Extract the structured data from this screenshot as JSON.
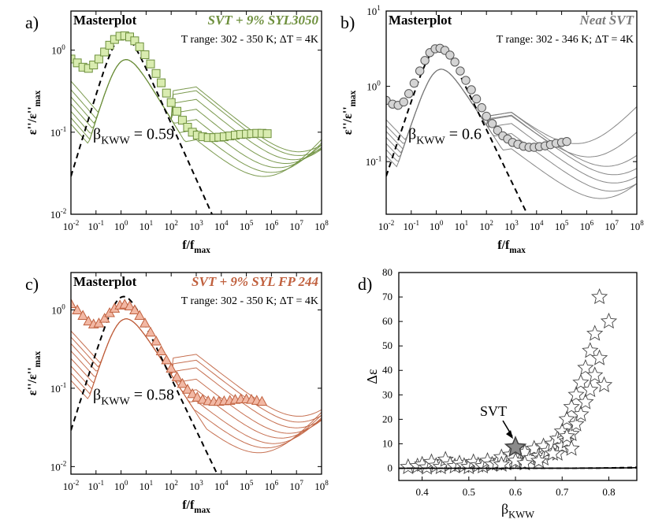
{
  "colors": {
    "panel_a": "#6d8f3c",
    "panel_a_fill": "#d9ecb0",
    "panel_b": "#7a7a7a",
    "panel_b_fill": "#d4d4d4",
    "panel_c": "#c0603e",
    "panel_c_fill": "#f2b8a4",
    "text": "#000000"
  },
  "chart_data": [
    {
      "id": "a",
      "panel_label": "a)",
      "type": "line",
      "title": "Masterplot",
      "sample": "SVT + 9% SYL3050",
      "t_range": "T range: 302 - 350 K; ΔT = 4K",
      "beta_label": "β",
      "beta_sub": "KWW",
      "beta_value": "= 0.59",
      "xlabel": "f/f",
      "xlabel_sub": "max",
      "ylabel": "ε''/ε''",
      "ylabel_sub": "max",
      "xscale": "log",
      "yscale": "log",
      "xlim": [
        0.01,
        100000000
      ],
      "ylim": [
        0.01,
        3
      ],
      "xticks": [
        "10-2",
        "10-1",
        "100",
        "101",
        "102",
        "103",
        "104",
        "105",
        "106",
        "107",
        "108"
      ],
      "yticks": [
        {
          "v": 0.01,
          "l": "10-2"
        },
        {
          "v": 0.1,
          "l": "10-1"
        },
        {
          "v": 1,
          "l": "100"
        }
      ],
      "fit_beta": 0.59,
      "markers": {
        "shape": "square",
        "x": [
          0.01,
          0.018,
          0.03,
          0.05,
          0.08,
          0.13,
          0.22,
          0.35,
          0.55,
          0.9,
          1.4,
          2.2,
          3.5,
          5.5,
          9,
          15,
          25,
          40,
          65,
          100,
          170,
          280,
          450,
          700,
          1100,
          1800,
          3000,
          5000,
          8000,
          13000,
          22000,
          36000,
          60000,
          100000,
          160000,
          260000,
          420000,
          680000
        ],
        "y": [
          0.78,
          0.7,
          0.62,
          0.6,
          0.66,
          0.78,
          0.95,
          1.15,
          1.35,
          1.48,
          1.5,
          1.45,
          1.3,
          1.1,
          0.88,
          0.68,
          0.52,
          0.4,
          0.3,
          0.23,
          0.18,
          0.14,
          0.115,
          0.1,
          0.092,
          0.088,
          0.086,
          0.086,
          0.087,
          0.088,
          0.09,
          0.092,
          0.094,
          0.095,
          0.096,
          0.097,
          0.097,
          0.096
        ]
      },
      "curves": [
        {
          "low": 0.7,
          "high_x": 100000000,
          "high_y": 0.05
        },
        {
          "low": 0.55,
          "high_x": 100000000,
          "high_y": 0.045
        },
        {
          "low": 0.45,
          "high_x": 60000000,
          "high_y": 0.04
        },
        {
          "low": 0.37,
          "high_x": 30000000,
          "high_y": 0.036
        },
        {
          "low": 0.3,
          "high_x": 15000000,
          "high_y": 0.032
        },
        {
          "low": 0.25,
          "high_x": 8000000,
          "high_y": 0.028
        },
        {
          "low": 0.21,
          "high_x": 4000000,
          "high_y": 0.025
        }
      ]
    },
    {
      "id": "b",
      "panel_label": "b)",
      "type": "line",
      "title": "Masterplot",
      "sample": "Neat SVT",
      "t_range": "T range: 302 - 346 K; ΔT = 4K",
      "beta_label": "β",
      "beta_sub": "KWW",
      "beta_value": "= 0.6",
      "xlabel": "f/f",
      "xlabel_sub": "max",
      "ylabel": "ε''/ε''",
      "ylabel_sub": "max",
      "xscale": "log",
      "yscale": "log",
      "xlim": [
        0.01,
        100000000
      ],
      "ylim": [
        0.02,
        10
      ],
      "xticks": [
        "10-2",
        "10-1",
        "100",
        "101",
        "102",
        "103",
        "104",
        "105",
        "106",
        "107",
        "108"
      ],
      "yticks": [
        {
          "v": 0.1,
          "l": "10-1"
        },
        {
          "v": 1,
          "l": "100"
        },
        {
          "v": 10,
          "l": "101"
        }
      ],
      "fit_beta": 0.6,
      "fit_scale": 3.2,
      "markers": {
        "shape": "circle",
        "x": [
          0.01,
          0.018,
          0.03,
          0.05,
          0.08,
          0.13,
          0.22,
          0.35,
          0.55,
          0.9,
          1.4,
          2.2,
          3.5,
          5.5,
          9,
          15,
          25,
          40,
          65,
          100,
          170,
          280,
          450,
          700,
          1100,
          1800,
          3000,
          5000,
          8000,
          13000,
          22000,
          36000,
          60000,
          100000,
          160000
        ],
        "y": [
          0.65,
          0.58,
          0.56,
          0.62,
          0.8,
          1.1,
          1.6,
          2.2,
          2.8,
          3.15,
          3.2,
          3.0,
          2.6,
          2.1,
          1.6,
          1.2,
          0.9,
          0.68,
          0.52,
          0.4,
          0.32,
          0.26,
          0.22,
          0.2,
          0.18,
          0.17,
          0.16,
          0.155,
          0.155,
          0.158,
          0.162,
          0.168,
          0.175,
          0.18,
          0.185
        ]
      },
      "curves": [
        {
          "low": 0.6,
          "high_x": 3000000,
          "high_y": 0.15
        },
        {
          "low": 0.5,
          "high_x": 10000000,
          "high_y": 0.1
        },
        {
          "low": 0.42,
          "high_x": 50000000,
          "high_y": 0.075
        },
        {
          "low": 0.35,
          "high_x": 100000000,
          "high_y": 0.058
        },
        {
          "low": 0.29,
          "high_x": 100000000,
          "high_y": 0.045
        },
        {
          "low": 0.24,
          "high_x": 80000000,
          "high_y": 0.035
        },
        {
          "low": 0.2,
          "high_x": 30000000,
          "high_y": 0.028
        }
      ]
    },
    {
      "id": "c",
      "panel_label": "c)",
      "type": "line",
      "title": "Masterplot",
      "sample": "SVT + 9% SYL FP 244",
      "t_range": "T range: 302 - 350 K; ΔT = 4K",
      "beta_label": "β",
      "beta_sub": "KWW",
      "beta_value": "= 0.58",
      "xlabel": "f/f",
      "xlabel_sub": "max",
      "ylabel": "ε''/ε''",
      "ylabel_sub": "max",
      "xscale": "log",
      "yscale": "log",
      "xlim": [
        0.01,
        100000000
      ],
      "ylim": [
        0.008,
        3
      ],
      "xticks": [
        "10-2",
        "10-1",
        "100",
        "101",
        "102",
        "103",
        "104",
        "105",
        "106",
        "107",
        "108"
      ],
      "yticks": [
        {
          "v": 0.01,
          "l": "10-2"
        },
        {
          "v": 0.1,
          "l": "10-1"
        },
        {
          "v": 1,
          "l": "100"
        }
      ],
      "fit_beta": 0.58,
      "markers": {
        "shape": "triangle",
        "x": [
          0.01,
          0.018,
          0.03,
          0.05,
          0.08,
          0.13,
          0.22,
          0.35,
          0.55,
          0.9,
          1.4,
          2.2,
          3.5,
          5.5,
          9,
          15,
          25,
          40,
          65,
          100,
          170,
          280,
          450,
          700,
          1100,
          1800,
          3000,
          5000,
          8000,
          13000,
          22000,
          36000,
          60000,
          100000,
          160000,
          260000,
          420000
        ],
        "y": [
          1.2,
          1.0,
          0.85,
          0.72,
          0.66,
          0.68,
          0.78,
          0.92,
          1.05,
          1.15,
          1.18,
          1.12,
          1.0,
          0.85,
          0.68,
          0.52,
          0.4,
          0.3,
          0.23,
          0.18,
          0.14,
          0.115,
          0.097,
          0.085,
          0.077,
          0.072,
          0.069,
          0.068,
          0.068,
          0.069,
          0.07,
          0.072,
          0.073,
          0.073,
          0.072,
          0.07,
          0.068
        ]
      },
      "curves": [
        {
          "low": 0.9,
          "high_x": 100000000,
          "high_y": 0.038
        },
        {
          "low": 0.75,
          "high_x": 100000000,
          "high_y": 0.032
        },
        {
          "low": 0.62,
          "high_x": 80000000,
          "high_y": 0.027
        },
        {
          "low": 0.5,
          "high_x": 40000000,
          "high_y": 0.023
        },
        {
          "low": 0.4,
          "high_x": 20000000,
          "high_y": 0.02
        },
        {
          "low": 0.32,
          "high_x": 10000000,
          "high_y": 0.017
        },
        {
          "low": 0.26,
          "high_x": 5000000,
          "high_y": 0.015
        },
        {
          "low": 0.21,
          "high_x": 2500000,
          "high_y": 0.013
        }
      ]
    },
    {
      "id": "d",
      "panel_label": "d)",
      "type": "scatter",
      "xlabel": "β",
      "xlabel_sub": "KWW",
      "ylabel": "Δε",
      "xlim": [
        0.35,
        0.86
      ],
      "ylim": [
        -5,
        80
      ],
      "xticks": [
        0.4,
        0.5,
        0.6,
        0.7,
        0.8
      ],
      "yticks": [
        0,
        10,
        20,
        30,
        40,
        50,
        60,
        70,
        80
      ],
      "annotation": "SVT",
      "highlight": {
        "x": 0.6,
        "y": 8.5
      },
      "points": [
        [
          0.37,
          0.5
        ],
        [
          0.39,
          0.8
        ],
        [
          0.4,
          1.5
        ],
        [
          0.41,
          0.3
        ],
        [
          0.42,
          2.5
        ],
        [
          0.43,
          1
        ],
        [
          0.44,
          0.5
        ],
        [
          0.45,
          3.5
        ],
        [
          0.46,
          1.5
        ],
        [
          0.47,
          0.8
        ],
        [
          0.48,
          2
        ],
        [
          0.49,
          1
        ],
        [
          0.5,
          0.5
        ],
        [
          0.51,
          2.5
        ],
        [
          0.52,
          1.2
        ],
        [
          0.53,
          0.8
        ],
        [
          0.54,
          3
        ],
        [
          0.55,
          1.5
        ],
        [
          0.56,
          2
        ],
        [
          0.57,
          4.5
        ],
        [
          0.58,
          2
        ],
        [
          0.59,
          5.5
        ],
        [
          0.61,
          3
        ],
        [
          0.62,
          6.5
        ],
        [
          0.63,
          4
        ],
        [
          0.64,
          8
        ],
        [
          0.65,
          5
        ],
        [
          0.66,
          9
        ],
        [
          0.66,
          4
        ],
        [
          0.67,
          7
        ],
        [
          0.68,
          10
        ],
        [
          0.69,
          6
        ],
        [
          0.69,
          12
        ],
        [
          0.7,
          9
        ],
        [
          0.7,
          15
        ],
        [
          0.71,
          11
        ],
        [
          0.71,
          20
        ],
        [
          0.72,
          14
        ],
        [
          0.72,
          25
        ],
        [
          0.73,
          18
        ],
        [
          0.73,
          30
        ],
        [
          0.74,
          22
        ],
        [
          0.74,
          35
        ],
        [
          0.75,
          27
        ],
        [
          0.75,
          41
        ],
        [
          0.76,
          32
        ],
        [
          0.76,
          48
        ],
        [
          0.77,
          38
        ],
        [
          0.77,
          55
        ],
        [
          0.78,
          45
        ],
        [
          0.78,
          70
        ],
        [
          0.79,
          34
        ],
        [
          0.8,
          60
        ],
        [
          0.71,
          13
        ],
        [
          0.68,
          6
        ],
        [
          0.65,
          3
        ],
        [
          0.6,
          3
        ],
        [
          0.62,
          2
        ],
        [
          0.57,
          1.5
        ],
        [
          0.72,
          8
        ]
      ],
      "fit_lines": [
        {
          "style": "solid",
          "a": 0.0005,
          "k": 14.0
        },
        {
          "style": "dashed",
          "a": 0.001,
          "k": 14.0
        },
        {
          "style": "dashed",
          "a": 0.00025,
          "k": 14.0
        }
      ]
    }
  ]
}
